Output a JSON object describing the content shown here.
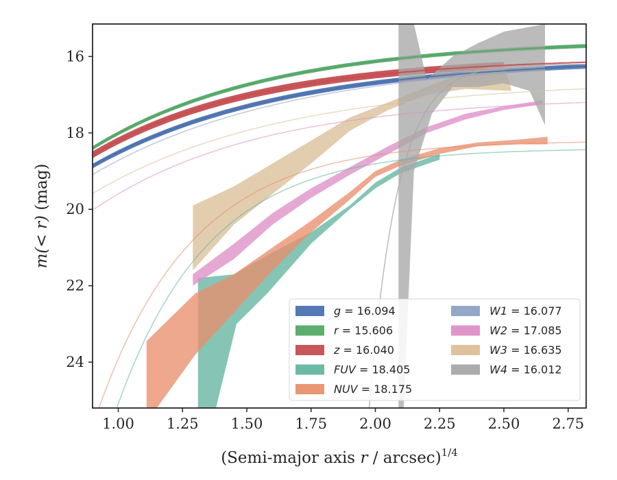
{
  "chart_data": {
    "type": "area",
    "xlabel": "(Semi-major axis r / arcsec)^1/4",
    "xlabel_main": "(Semi-major axis ",
    "xlabel_var": "r",
    "xlabel_tail": " / arcsec)",
    "xlabel_sup": "1/4",
    "ylabel": "m(<r) (mag)",
    "ylabel_pre": "m(< r)",
    "ylabel_unit": " (mag)",
    "xlim": [
      0.9,
      2.82
    ],
    "ylim": [
      25.2,
      15.15
    ],
    "y_inverted": true,
    "x_ticks": [
      1.0,
      1.25,
      1.5,
      1.75,
      2.0,
      2.25,
      2.5,
      2.75
    ],
    "x_tick_labels": [
      "1.00",
      "1.25",
      "1.50",
      "1.75",
      "2.00",
      "2.25",
      "2.50",
      "2.75"
    ],
    "y_ticks": [
      16,
      18,
      20,
      22,
      24
    ],
    "y_tick_labels": [
      "16",
      "18",
      "20",
      "22",
      "24"
    ],
    "grid": false,
    "legend_placement": "lower-right",
    "series": [
      {
        "name": "g = 16.094",
        "label_var": "g",
        "label_val": "= 16.094",
        "color": "#4c72b0",
        "model": {
          "m_inf": 16.05,
          "A": 9.5,
          "k": 1.35
        },
        "band_x": [
          0.9,
          2.82
        ],
        "band_width": 0.12
      },
      {
        "name": "r = 15.606",
        "label_var": "r",
        "label_val": "= 15.606",
        "color": "#55a868",
        "model": {
          "m_inf": 15.55,
          "A": 10.5,
          "k": 1.45
        },
        "band_x": [
          0.9,
          2.82
        ],
        "band_width": 0.1
      },
      {
        "name": "z = 16.040",
        "label_var": "z",
        "label_val": "= 16.040",
        "color": "#c44e52",
        "model": {
          "m_inf": 16.02,
          "A": 10.3,
          "k": 1.55
        },
        "band_x": [
          0.9,
          2.5
        ],
        "band_width": 0.18
      },
      {
        "name": "FUV = 18.405",
        "label_var": "FUV",
        "label_val": "= 18.405",
        "color": "#64b5a0",
        "model": {
          "m_inf": 18.4,
          "A": 110,
          "k": 2.8
        },
        "band_upper": [
          [
            1.31,
            21.8
          ],
          [
            1.45,
            21.7
          ],
          [
            1.58,
            21.2
          ],
          [
            1.75,
            20.6
          ],
          [
            1.9,
            19.9
          ],
          [
            2.0,
            19.3
          ],
          [
            2.1,
            18.9
          ],
          [
            2.25,
            18.55
          ]
        ],
        "band_lower": [
          [
            1.31,
            25.2
          ],
          [
            1.38,
            25.2
          ],
          [
            1.46,
            23.0
          ],
          [
            1.58,
            22.2
          ],
          [
            1.75,
            20.9
          ],
          [
            1.9,
            20.0
          ],
          [
            2.0,
            19.45
          ],
          [
            2.1,
            19.05
          ],
          [
            2.25,
            18.7
          ]
        ]
      },
      {
        "name": "NUV = 18.175",
        "label_var": "NUV",
        "label_val": "= 18.175",
        "color": "#e8906e",
        "model": {
          "m_inf": 18.2,
          "A": 85,
          "k": 2.7
        },
        "band_upper": [
          [
            1.11,
            23.45
          ],
          [
            1.3,
            22.2
          ],
          [
            1.45,
            21.7
          ],
          [
            1.6,
            21.0
          ],
          [
            1.75,
            20.3
          ],
          [
            1.9,
            19.55
          ],
          [
            2.0,
            19.0
          ],
          [
            2.1,
            18.7
          ],
          [
            2.25,
            18.4
          ],
          [
            2.4,
            18.25
          ],
          [
            2.55,
            18.18
          ],
          [
            2.67,
            18.1
          ]
        ],
        "band_lower": [
          [
            1.11,
            25.2
          ],
          [
            1.15,
            25.2
          ],
          [
            1.3,
            23.8
          ],
          [
            1.45,
            22.7
          ],
          [
            1.6,
            21.6
          ],
          [
            1.75,
            20.6
          ],
          [
            1.9,
            19.75
          ],
          [
            2.0,
            19.15
          ],
          [
            2.1,
            18.85
          ],
          [
            2.25,
            18.55
          ],
          [
            2.4,
            18.35
          ],
          [
            2.55,
            18.3
          ],
          [
            2.67,
            18.3
          ]
        ]
      },
      {
        "name": "W1 = 16.077",
        "label_var": "W1",
        "label_val": "= 16.077",
        "color": "#8fa2c4",
        "model": {
          "m_inf": 16.05,
          "A": 9.8,
          "k": 1.3
        }
      },
      {
        "name": "W2 = 17.085",
        "label_var": "W2",
        "label_val": "= 17.085",
        "color": "#dd8fc7",
        "model": {
          "m_inf": 17.05,
          "A": 12,
          "k": 1.55
        },
        "band_upper": [
          [
            1.29,
            21.7
          ],
          [
            1.45,
            20.9
          ],
          [
            1.6,
            20.1
          ],
          [
            1.75,
            19.45
          ],
          [
            1.9,
            18.9
          ],
          [
            2.05,
            18.35
          ],
          [
            2.2,
            17.85
          ],
          [
            2.35,
            17.5
          ],
          [
            2.5,
            17.3
          ],
          [
            2.65,
            17.15
          ]
        ],
        "band_lower": [
          [
            1.29,
            22.0
          ],
          [
            1.45,
            21.3
          ],
          [
            1.6,
            20.4
          ],
          [
            1.75,
            19.7
          ],
          [
            1.9,
            19.1
          ],
          [
            2.05,
            18.55
          ],
          [
            2.2,
            18.0
          ],
          [
            2.35,
            17.65
          ],
          [
            2.5,
            17.4
          ],
          [
            2.65,
            17.25
          ]
        ]
      },
      {
        "name": "W3 = 16.635",
        "label_var": "W3",
        "label_val": "= 16.635",
        "color": "#dbbf98",
        "model": {
          "m_inf": 16.62,
          "A": 10,
          "k": 1.35
        },
        "band_upper": [
          [
            1.29,
            19.9
          ],
          [
            1.45,
            19.4
          ],
          [
            1.6,
            18.8
          ],
          [
            1.75,
            18.2
          ],
          [
            1.9,
            17.6
          ],
          [
            2.05,
            17.2
          ],
          [
            2.2,
            16.8
          ],
          [
            2.35,
            16.4
          ],
          [
            2.5,
            16.2
          ]
        ],
        "band_lower": [
          [
            1.29,
            21.6
          ],
          [
            1.45,
            20.4
          ],
          [
            1.6,
            19.6
          ],
          [
            1.75,
            18.8
          ],
          [
            1.9,
            17.95
          ],
          [
            2.05,
            17.4
          ],
          [
            2.2,
            17.0
          ],
          [
            2.35,
            16.85
          ],
          [
            2.53,
            16.9
          ]
        ]
      },
      {
        "name": "W4 = 16.012",
        "label_var": "W4",
        "label_val": "= 16.012",
        "color": "#a8a8a8",
        "model_x_start": 1.97,
        "band_upper": [
          [
            2.09,
            15.15
          ],
          [
            2.15,
            15.15
          ],
          [
            2.2,
            16.6
          ],
          [
            2.3,
            16.0
          ],
          [
            2.4,
            15.65
          ],
          [
            2.5,
            15.35
          ],
          [
            2.58,
            15.25
          ],
          [
            2.66,
            15.15
          ]
        ],
        "band_lower": [
          [
            2.09,
            25.2
          ],
          [
            2.11,
            25.2
          ],
          [
            2.15,
            19.0
          ],
          [
            2.22,
            17.5
          ],
          [
            2.3,
            16.8
          ],
          [
            2.4,
            16.8
          ],
          [
            2.5,
            16.7
          ],
          [
            2.6,
            16.9
          ],
          [
            2.66,
            17.8
          ]
        ]
      }
    ]
  }
}
